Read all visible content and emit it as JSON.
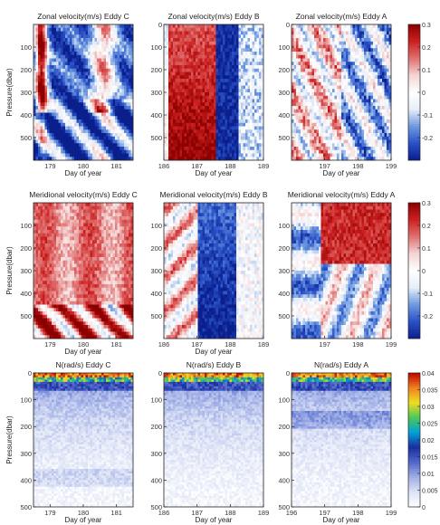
{
  "colors": {
    "velocity_cmap": [
      "#0a1e8c",
      "#2a52c8",
      "#6f9ae0",
      "#e6eef8",
      "#ffffff",
      "#f4d4d4",
      "#e07070",
      "#cc2020",
      "#8c0000"
    ],
    "n_cmap": [
      "#ffffff",
      "#dde3f6",
      "#9faee6",
      "#4f66c9",
      "#1a2f9f",
      "#00a0d8",
      "#4ec858",
      "#f0dc22",
      "#f08020",
      "#c00000"
    ]
  },
  "chart_data": [
    {
      "type": "heatmap",
      "row": 0,
      "col": 0,
      "field": "zonal",
      "colorbar": false,
      "title": "Zonal velocity(m/s) Eddy C",
      "xlabel": "Day of year",
      "ylabel": "Pressure(dbar)",
      "xlim": [
        178.5,
        181.5
      ],
      "ylim": [
        0,
        600
      ],
      "xticks": [
        179,
        180,
        181
      ],
      "xticklabels": [
        "179",
        "180",
        "181"
      ],
      "yticks": [
        100,
        200,
        300,
        400,
        500
      ],
      "yticklabels": [
        "100",
        "200",
        "300",
        "400",
        "500"
      ]
    },
    {
      "type": "heatmap",
      "row": 0,
      "col": 1,
      "field": "zonal",
      "colorbar": false,
      "title": "Zonal velocity(m/s) Eddy B",
      "xlabel": "Day of year",
      "ylabel": "",
      "xlim": [
        186,
        189
      ],
      "ylim": [
        0,
        600
      ],
      "xticks": [
        186,
        187,
        188,
        189
      ],
      "xticklabels": [
        "186",
        "187",
        "188",
        "189"
      ],
      "yticks": [
        0,
        100,
        200,
        300,
        400,
        500
      ],
      "yticklabels": [
        "0",
        "100",
        "200",
        "300",
        "400",
        "500"
      ]
    },
    {
      "type": "heatmap",
      "row": 0,
      "col": 2,
      "field": "zonal",
      "colorbar": true,
      "title": "Zonal velocity(m/s) Eddy A",
      "xlabel": "Day of year",
      "ylabel": "",
      "xlim": [
        196,
        199
      ],
      "ylim": [
        0,
        600
      ],
      "xticks": [
        197,
        198,
        199
      ],
      "xticklabels": [
        "197",
        "198",
        "199"
      ],
      "yticks": [
        0,
        100,
        200,
        300,
        400,
        500
      ],
      "yticklabels": [
        "0",
        "100",
        "200",
        "300",
        "400",
        "500"
      ],
      "clim": [
        -0.3,
        0.3
      ],
      "cbar_ticks": [
        0.3,
        0.2,
        0.1,
        0,
        -0.1,
        -0.2
      ],
      "cbar_ticklabels": [
        "0.3",
        "0.2",
        "0.1",
        "0",
        "-0.1",
        "-0.2"
      ]
    },
    {
      "type": "heatmap",
      "row": 1,
      "col": 0,
      "field": "meridional",
      "colorbar": false,
      "title": "Meridional velocity(m/s) Eddy C",
      "xlabel": "Day of year",
      "ylabel": "Pressure(dbar)",
      "xlim": [
        178.5,
        181.5
      ],
      "ylim": [
        0,
        600
      ],
      "xticks": [
        179,
        180,
        181
      ],
      "xticklabels": [
        "179",
        "180",
        "181"
      ],
      "yticks": [
        100,
        200,
        300,
        400,
        500
      ],
      "yticklabels": [
        "100",
        "200",
        "300",
        "400",
        "500"
      ]
    },
    {
      "type": "heatmap",
      "row": 1,
      "col": 1,
      "field": "meridional",
      "colorbar": false,
      "title": "Meridional velocity(m/s) Eddy B",
      "xlabel": "Day of year",
      "ylabel": "",
      "xlim": [
        186,
        189
      ],
      "ylim": [
        0,
        600
      ],
      "xticks": [
        186,
        187,
        188,
        189
      ],
      "xticklabels": [
        "186",
        "187",
        "188",
        "189"
      ],
      "yticks": [
        100,
        200,
        300,
        400,
        500
      ],
      "yticklabels": [
        "100",
        "200",
        "300",
        "400",
        "500"
      ]
    },
    {
      "type": "heatmap",
      "row": 1,
      "col": 2,
      "field": "meridional",
      "colorbar": true,
      "title": "Meridional velocity(m/s) Eddy A",
      "xlabel": "",
      "ylabel": "",
      "xlim": [
        196,
        199
      ],
      "ylim": [
        0,
        600
      ],
      "xticks": [
        197,
        198,
        199
      ],
      "xticklabels": [
        "197",
        "198",
        "199"
      ],
      "yticks": [
        100,
        200,
        300,
        400,
        500
      ],
      "yticklabels": [
        "100",
        "200",
        "300",
        "400",
        "500"
      ],
      "clim": [
        -0.3,
        0.3
      ],
      "cbar_ticks": [
        0.3,
        0.2,
        0.1,
        0,
        -0.1,
        -0.2
      ],
      "cbar_ticklabels": [
        "0.3",
        "0.2",
        "0.1",
        "0",
        "-0.1",
        "-0.2"
      ]
    },
    {
      "type": "heatmap",
      "row": 2,
      "col": 0,
      "field": "N",
      "colorbar": false,
      "title": "N(rad/s) Eddy C",
      "xlabel": "Day of year",
      "ylabel": "Pressure(dbar)",
      "xlim": [
        178.5,
        181.5
      ],
      "ylim": [
        0,
        500
      ],
      "xticks": [
        179,
        180,
        181
      ],
      "xticklabels": [
        "179",
        "180",
        "181"
      ],
      "yticks": [
        0,
        100,
        200,
        300,
        400,
        500
      ],
      "yticklabels": [
        "0",
        "100",
        "200",
        "300",
        "400",
        "500"
      ]
    },
    {
      "type": "heatmap",
      "row": 2,
      "col": 1,
      "field": "N",
      "colorbar": false,
      "title": "N(rad/s) Eddy B",
      "xlabel": "Day of year",
      "ylabel": "",
      "xlim": [
        186,
        189
      ],
      "ylim": [
        0,
        500
      ],
      "xticks": [
        186,
        187,
        188,
        189
      ],
      "xticklabels": [
        "186",
        "187",
        "188",
        "189"
      ],
      "yticks": [
        0,
        100,
        200,
        300,
        400,
        500
      ],
      "yticklabels": [
        "0",
        "100",
        "200",
        "300",
        "400",
        "500"
      ]
    },
    {
      "type": "heatmap",
      "row": 2,
      "col": 2,
      "field": "N",
      "colorbar": true,
      "title": "N(rad/s) Eddy A",
      "xlabel": "Day of year",
      "ylabel": "",
      "xlim": [
        196,
        199
      ],
      "ylim": [
        0,
        500
      ],
      "xticks": [
        196,
        197,
        198,
        199
      ],
      "xticklabels": [
        "196",
        "197",
        "198",
        "199"
      ],
      "yticks": [
        0,
        100,
        200,
        300,
        400,
        500
      ],
      "yticklabels": [
        "0",
        "100",
        "200",
        "300",
        "400",
        "500"
      ],
      "clim": [
        0,
        0.04
      ],
      "cbar_ticks": [
        0.04,
        0.035,
        0.03,
        0.025,
        0.02,
        0.015,
        0.01,
        0.005,
        0
      ],
      "cbar_ticklabels": [
        "0.04",
        "0.035",
        "0.03",
        "0.025",
        "0.02",
        "0.015",
        "0.01",
        "0.005",
        "0"
      ]
    }
  ]
}
